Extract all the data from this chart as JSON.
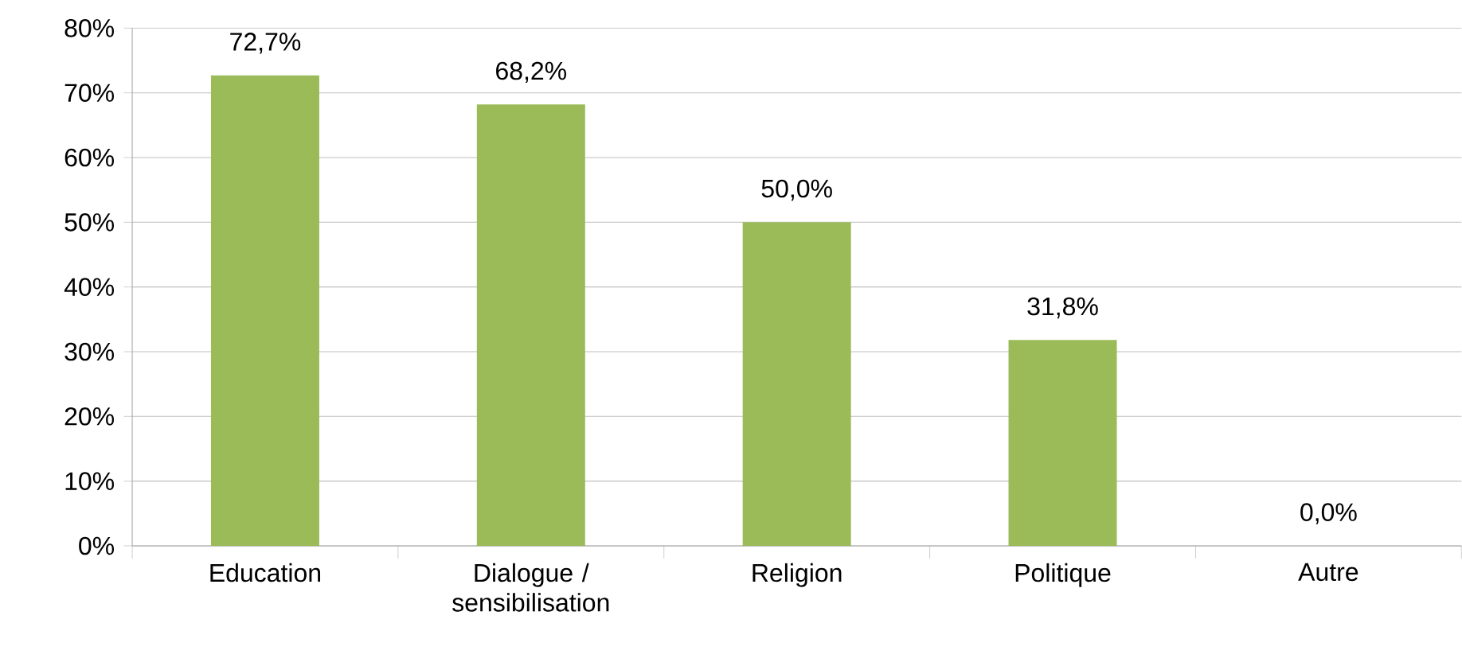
{
  "chart_data": {
    "type": "bar",
    "categories": [
      "Education",
      "Dialogue / sensibilisation",
      "Religion",
      "Politique",
      "Autre"
    ],
    "values": [
      72.7,
      68.2,
      50.0,
      31.8,
      0.0
    ],
    "value_labels": [
      "72,7%",
      "68,2%",
      "50,0%",
      "31,8%",
      "0,0%"
    ],
    "color": "#9bbb59",
    "ylim": [
      0,
      80
    ],
    "yticks": [
      {
        "value": 0,
        "label": "0%"
      },
      {
        "value": 10,
        "label": "10%"
      },
      {
        "value": 20,
        "label": "20%"
      },
      {
        "value": 30,
        "label": "30%"
      },
      {
        "value": 40,
        "label": "40%"
      },
      {
        "value": 50,
        "label": "50%"
      },
      {
        "value": 60,
        "label": "60%"
      },
      {
        "value": 70,
        "label": "70%"
      },
      {
        "value": 80,
        "label": "80%"
      }
    ],
    "grid": "y"
  }
}
